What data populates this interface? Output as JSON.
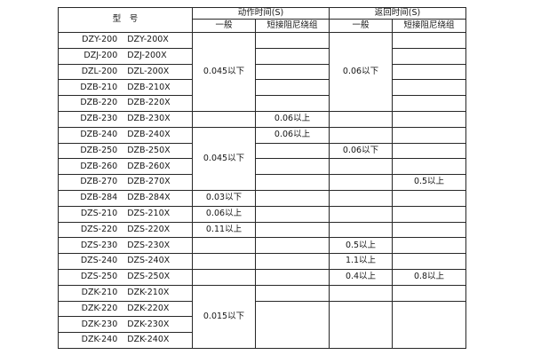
{
  "page": {
    "background": "#ffffff",
    "border_color": "#272727",
    "text_color": "#161616"
  },
  "table": {
    "header": {
      "model_label": "型　号",
      "groups": [
        {
          "label": "动作时间(S)",
          "subs": [
            "一般",
            "短接阻尼绕组"
          ]
        },
        {
          "label": "返回时间(S)",
          "subs": [
            "一般",
            "短接阻尼绕组"
          ]
        }
      ]
    },
    "rows": [
      {
        "models": [
          "DZY-200",
          "DZY-200X"
        ],
        "values": [
          {
            "text": "0.045以下",
            "span": 5
          },
          {
            "text": ""
          },
          {
            "text": "0.06以下",
            "span": 5
          },
          {
            "text": ""
          }
        ]
      },
      {
        "models": [
          "DZJ-200",
          "DZJ-200X"
        ],
        "values": [
          null,
          {
            "text": ""
          },
          null,
          {
            "text": ""
          }
        ]
      },
      {
        "models": [
          "DZL-200",
          "DZL-200X"
        ],
        "values": [
          null,
          {
            "text": ""
          },
          null,
          {
            "text": ""
          }
        ]
      },
      {
        "models": [
          "DZB-210",
          "DZB-210X"
        ],
        "values": [
          null,
          {
            "text": ""
          },
          null,
          {
            "text": ""
          }
        ]
      },
      {
        "models": [
          "DZB-220",
          "DZB-220X"
        ],
        "values": [
          null,
          {
            "text": ""
          },
          null,
          {
            "text": ""
          }
        ]
      },
      {
        "models": [
          "DZB-230",
          "DZB-230X"
        ],
        "values": [
          {
            "text": ""
          },
          {
            "text": "0.06以上"
          },
          {
            "text": ""
          },
          {
            "text": ""
          }
        ]
      },
      {
        "models": [
          "DZB-240",
          "DZB-240X"
        ],
        "values": [
          {
            "text": "0.045以下",
            "span": 4
          },
          {
            "text": "0.06以上"
          },
          {
            "text": ""
          },
          {
            "text": ""
          }
        ]
      },
      {
        "models": [
          "DZB-250",
          "DZB-250X"
        ],
        "values": [
          null,
          {
            "text": ""
          },
          {
            "text": "0.06以下"
          },
          {
            "text": ""
          }
        ]
      },
      {
        "models": [
          "DZB-260",
          "DZB-260X"
        ],
        "values": [
          null,
          {
            "text": ""
          },
          {
            "text": ""
          },
          {
            "text": ""
          }
        ]
      },
      {
        "models": [
          "DZB-270",
          "DZB-270X"
        ],
        "values": [
          null,
          {
            "text": ""
          },
          {
            "text": ""
          },
          {
            "text": "0.5以上"
          }
        ]
      },
      {
        "models": [
          "DZB-284",
          "DZB-284X"
        ],
        "values": [
          {
            "text": "0.03以下"
          },
          {
            "text": ""
          },
          {
            "text": ""
          },
          {
            "text": ""
          }
        ]
      },
      {
        "models": [
          "DZS-210",
          "DZS-210X"
        ],
        "values": [
          {
            "text": "0.06以上"
          },
          {
            "text": ""
          },
          {
            "text": ""
          },
          {
            "text": ""
          }
        ]
      },
      {
        "models": [
          "DZS-220",
          "DZS-220X"
        ],
        "values": [
          {
            "text": "0.11以上"
          },
          {
            "text": ""
          },
          {
            "text": ""
          },
          {
            "text": ""
          }
        ]
      },
      {
        "models": [
          "DZS-230",
          "DZS-230X"
        ],
        "values": [
          {
            "text": ""
          },
          {
            "text": ""
          },
          {
            "text": "0.5以上"
          },
          {
            "text": ""
          }
        ]
      },
      {
        "models": [
          "DZS-240",
          "DZS-240X"
        ],
        "values": [
          {
            "text": ""
          },
          {
            "text": ""
          },
          {
            "text": "1.1以上"
          },
          {
            "text": ""
          }
        ]
      },
      {
        "models": [
          "DZS-250",
          "DZS-250X"
        ],
        "values": [
          {
            "text": ""
          },
          {
            "text": ""
          },
          {
            "text": "0.4以上"
          },
          {
            "text": "0.8以上"
          }
        ]
      },
      {
        "models": [
          "DZK-210",
          "DZK-210X"
        ],
        "values": [
          {
            "text": "0.015以下",
            "span": 4
          },
          {
            "text": ""
          },
          {
            "text": ""
          },
          {
            "text": ""
          }
        ]
      },
      {
        "models": [
          "DZK-220",
          "DZK-220X"
        ],
        "values": [
          null,
          {
            "text": "",
            "span": 3
          },
          {
            "text": "",
            "span": 3
          },
          {
            "text": "",
            "span": 3
          }
        ]
      },
      {
        "models": [
          "DZK-230",
          "DZK-230X"
        ],
        "values": [
          null,
          null,
          null,
          null
        ]
      },
      {
        "models": [
          "DZK-240",
          "DZK-240X"
        ],
        "values": [
          null,
          null,
          null,
          null
        ]
      }
    ]
  }
}
